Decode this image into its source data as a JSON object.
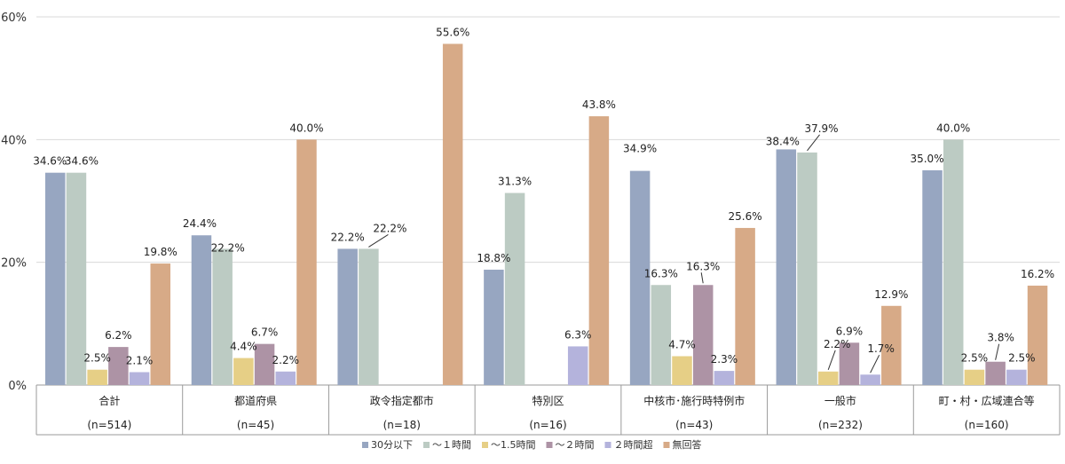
{
  "chart_data": {
    "type": "bar",
    "categories": [
      "合計",
      "都道府県",
      "政令指定都市",
      "特別区",
      "中核市･施行時特例市",
      "一般市",
      "町・村・広域連合等"
    ],
    "category_n": [
      "(n=514)",
      "(n=45)",
      "(n=18)",
      "(n=16)",
      "(n=43)",
      "(n=232)",
      "(n=160)"
    ],
    "series": [
      {
        "name": "30分以下",
        "color": "#97a6c1",
        "values": [
          34.6,
          24.4,
          22.2,
          18.8,
          34.9,
          38.4,
          35.0
        ]
      },
      {
        "name": "～１時間",
        "color": "#bccbc3",
        "values": [
          34.6,
          22.2,
          22.2,
          31.3,
          16.3,
          37.9,
          40.0
        ]
      },
      {
        "name": "～1.5時間",
        "color": "#e6cf86",
        "values": [
          2.5,
          4.4,
          null,
          null,
          4.7,
          2.2,
          2.5
        ]
      },
      {
        "name": "～２時間",
        "color": "#ad93a5",
        "values": [
          6.2,
          6.7,
          null,
          null,
          16.3,
          6.9,
          3.8
        ]
      },
      {
        "name": "２時間超",
        "color": "#b4b3dc",
        "values": [
          2.1,
          2.2,
          null,
          6.3,
          2.3,
          1.7,
          2.5
        ]
      },
      {
        "name": "無回答",
        "color": "#d7aa87",
        "values": [
          19.8,
          40.0,
          55.6,
          43.8,
          25.6,
          12.9,
          16.2
        ]
      }
    ],
    "y_ticks": [
      "0%",
      "20%",
      "40%",
      "60%"
    ],
    "ylim": [
      0,
      60
    ],
    "legend_position": "bottom",
    "grid": true
  }
}
